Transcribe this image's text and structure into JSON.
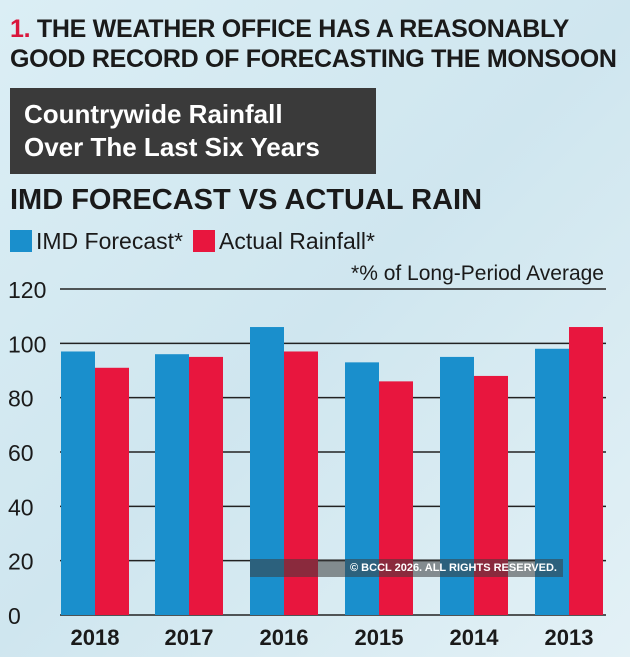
{
  "headline": {
    "number": "1.",
    "text": "THE WEATHER OFFICE HAS A REASONABLY GOOD RECORD OF FORECASTING THE MONSOON"
  },
  "box_title": [
    "Countrywide Rainfall",
    "Over The Last Six Years"
  ],
  "watermark": "© BCCL 2026. ALL RIGHTS RESERVED.",
  "chart_data": {
    "type": "bar",
    "title": "IMD FORECAST VS ACTUAL RAIN",
    "note": "*% of Long-Period Average",
    "categories": [
      "2018",
      "2017",
      "2016",
      "2015",
      "2014",
      "2013"
    ],
    "series": [
      {
        "name": "IMD Forecast*",
        "color": "#1a8fcc",
        "values": [
          97,
          96,
          106,
          93,
          95,
          98
        ]
      },
      {
        "name": "Actual Rainfall*",
        "color": "#e8163e",
        "values": [
          91,
          95,
          97,
          86,
          88,
          106
        ]
      }
    ],
    "ylim": [
      0,
      120
    ],
    "yticks": [
      0,
      20,
      40,
      60,
      80,
      100,
      120
    ],
    "grid": true,
    "legend": "top-left"
  }
}
